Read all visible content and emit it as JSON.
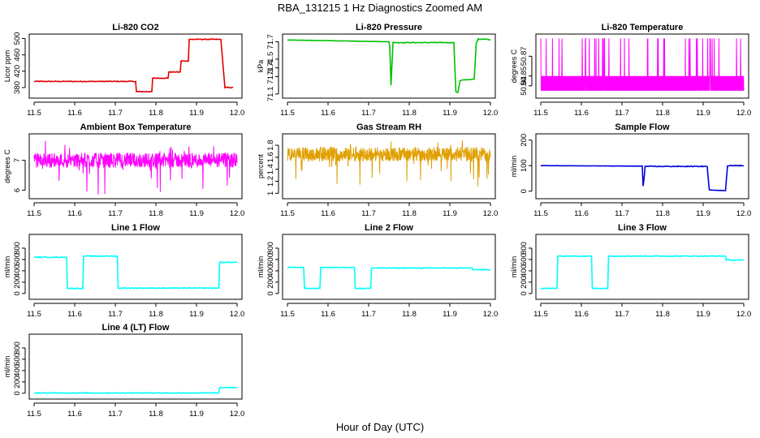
{
  "figure": {
    "title": "RBA_131215  1 Hz Diagnostics Zoomed AM",
    "xlabel": "Hour of Day (UTC)"
  },
  "chart_data": [
    {
      "type": "line",
      "title": "Li-820 CO2",
      "xlabel": "",
      "ylabel": "Licor ppm",
      "xlim": [
        11.5,
        12.0
      ],
      "ylim": [
        360,
        505
      ],
      "x_ticks": [
        11.5,
        11.6,
        11.7,
        11.8,
        11.9,
        12.0
      ],
      "y_ticks": [
        380,
        420,
        460,
        500
      ],
      "series": [
        {
          "color": "#e00000",
          "x": [
            11.5,
            11.75,
            11.752,
            11.79,
            11.792,
            11.83,
            11.832,
            11.86,
            11.862,
            11.88,
            11.882,
            11.96,
            11.97,
            11.99
          ],
          "y": [
            395,
            395,
            370,
            370,
            403,
            403,
            418,
            418,
            445,
            445,
            498,
            498,
            380,
            380
          ]
        }
      ],
      "grid": false
    },
    {
      "type": "line",
      "title": "Li-820 Pressure",
      "xlabel": "",
      "ylabel": "kPa",
      "xlim": [
        11.5,
        12.0
      ],
      "ylim": [
        71.08,
        71.76
      ],
      "x_ticks": [
        11.5,
        11.6,
        11.7,
        11.8,
        11.9,
        12.0
      ],
      "y_ticks": [
        71.1,
        71.3,
        71.4,
        71.5,
        71.7
      ],
      "series": [
        {
          "color": "#00c000",
          "x": [
            11.5,
            11.75,
            11.752,
            11.755,
            11.76,
            11.91,
            11.915,
            11.92,
            11.925,
            11.93,
            11.96,
            11.965,
            11.97,
            11.99,
            12.0
          ],
          "y": [
            71.72,
            71.7,
            71.65,
            71.2,
            71.69,
            71.69,
            71.12,
            71.12,
            71.25,
            71.26,
            71.27,
            71.68,
            71.73,
            71.73,
            71.72
          ]
        }
      ],
      "grid": false
    },
    {
      "type": "line",
      "title": "Li-820 Temperature",
      "xlabel": "",
      "ylabel": "degrees C",
      "xlim": [
        11.5,
        12.0
      ],
      "ylim": [
        50.83,
        50.89
      ],
      "x_ticks": [
        11.5,
        11.6,
        11.7,
        11.8,
        11.9,
        12.0
      ],
      "y_ticks": [
        50.84,
        50.85,
        50.87
      ],
      "series": [
        {
          "color": "#ff00ff",
          "noise_band": [
            50.835,
            50.85
          ],
          "spike_top": 50.888
        }
      ],
      "grid": false
    },
    {
      "type": "line",
      "title": "Ambient Box Temperature",
      "xlabel": "",
      "ylabel": "degrees C",
      "xlim": [
        11.5,
        12.0
      ],
      "ylim": [
        5.8,
        7.8
      ],
      "x_ticks": [
        11.5,
        11.6,
        11.7,
        11.8,
        11.9,
        12.0
      ],
      "y_ticks": [
        6.0,
        7.0
      ],
      "series": [
        {
          "color": "#ff00ff",
          "mean": 7.0,
          "noise": 0.25,
          "min": 5.8,
          "max": 7.7
        }
      ],
      "grid": false
    },
    {
      "type": "line",
      "title": "Gas Stream RH",
      "xlabel": "",
      "ylabel": "percent",
      "xlim": [
        11.5,
        12.0
      ],
      "ylim": [
        0.95,
        1.95
      ],
      "x_ticks": [
        11.5,
        11.6,
        11.7,
        11.8,
        11.9,
        12.0
      ],
      "y_ticks": [
        1.0,
        1.2,
        1.4,
        1.6,
        1.8
      ],
      "series": [
        {
          "color": "#e0a000",
          "mean": 1.65,
          "noise": 0.12,
          "min": 1.05,
          "max": 1.9
        }
      ],
      "grid": false
    },
    {
      "type": "line",
      "title": "Sample Flow",
      "xlabel": "",
      "ylabel": "ml/min",
      "xlim": [
        11.5,
        12.0
      ],
      "ylim": [
        -20,
        215
      ],
      "x_ticks": [
        11.5,
        11.6,
        11.7,
        11.8,
        11.9,
        12.0
      ],
      "y_ticks": [
        0,
        100,
        200
      ],
      "series": [
        {
          "color": "#0000e0",
          "x": [
            11.5,
            11.75,
            11.752,
            11.755,
            11.757,
            11.91,
            11.915,
            11.955,
            11.96,
            12.0
          ],
          "y": [
            100,
            98,
            20,
            60,
            97,
            97,
            5,
            2,
            100,
            100
          ]
        }
      ],
      "grid": false
    },
    {
      "type": "line",
      "title": "Line 1 Flow",
      "xlabel": "",
      "ylabel": "ml/min",
      "xlim": [
        11.5,
        12.0
      ],
      "ylim": [
        -60,
        1000
      ],
      "x_ticks": [
        11.5,
        11.6,
        11.7,
        11.8,
        11.9,
        12.0
      ],
      "y_ticks": [
        0,
        200,
        400,
        600,
        800
      ],
      "series": [
        {
          "color": "#00ffff",
          "x": [
            11.5,
            11.58,
            11.582,
            11.62,
            11.622,
            11.705,
            11.707,
            11.955,
            11.957,
            12.0
          ],
          "y": [
            640,
            640,
            90,
            90,
            660,
            660,
            95,
            95,
            550,
            550
          ]
        }
      ],
      "grid": false
    },
    {
      "type": "line",
      "title": "Line 2 Flow",
      "xlabel": "",
      "ylabel": "ml/min",
      "xlim": [
        11.5,
        12.0
      ],
      "ylim": [
        -60,
        1000
      ],
      "x_ticks": [
        11.5,
        11.6,
        11.7,
        11.8,
        11.9,
        12.0
      ],
      "y_ticks": [
        0,
        200,
        400,
        600,
        800
      ],
      "series": [
        {
          "color": "#00ffff",
          "x": [
            11.5,
            11.54,
            11.542,
            11.58,
            11.582,
            11.665,
            11.667,
            11.705,
            11.707,
            11.955,
            11.957,
            12.0
          ],
          "y": [
            460,
            460,
            90,
            90,
            460,
            460,
            90,
            90,
            450,
            450,
            420,
            420
          ]
        }
      ],
      "grid": false
    },
    {
      "type": "line",
      "title": "Line 3 Flow",
      "xlabel": "",
      "ylabel": "ml/min",
      "xlim": [
        11.5,
        12.0
      ],
      "ylim": [
        -60,
        1000
      ],
      "x_ticks": [
        11.5,
        11.6,
        11.7,
        11.8,
        11.9,
        12.0
      ],
      "y_ticks": [
        0,
        200,
        400,
        600,
        800
      ],
      "series": [
        {
          "color": "#00ffff",
          "x": [
            11.5,
            11.54,
            11.542,
            11.625,
            11.627,
            11.665,
            11.667,
            11.955,
            11.957,
            12.0
          ],
          "y": [
            90,
            90,
            660,
            660,
            90,
            90,
            660,
            660,
            590,
            590
          ]
        }
      ],
      "grid": false
    },
    {
      "type": "line",
      "title": "Line 4 (LT) Flow",
      "xlabel": "",
      "ylabel": "ml/min",
      "xlim": [
        11.5,
        12.0
      ],
      "ylim": [
        -60,
        1000
      ],
      "x_ticks": [
        11.5,
        11.6,
        11.7,
        11.8,
        11.9,
        12.0
      ],
      "y_ticks": [
        0,
        200,
        400,
        600,
        800
      ],
      "series": [
        {
          "color": "#00ffff",
          "x": [
            11.5,
            11.955,
            11.957,
            12.0
          ],
          "y": [
            5,
            5,
            100,
            100
          ]
        }
      ],
      "grid": false
    }
  ]
}
